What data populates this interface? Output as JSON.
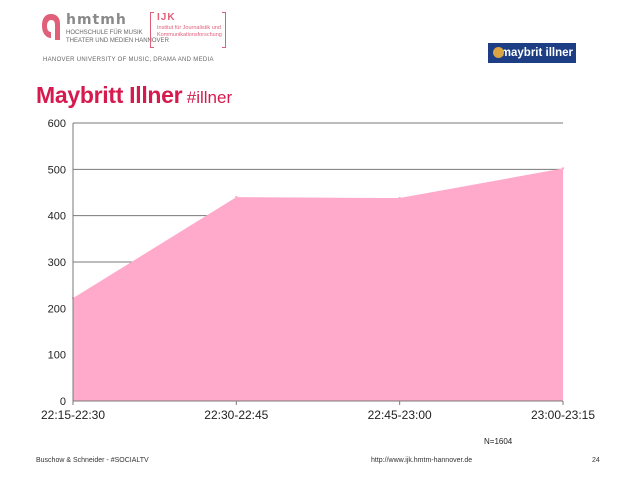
{
  "header": {
    "logo_name": "hmtmh",
    "logo_line1": "HOCHSCHULE FÜR MUSIK",
    "logo_line2": "THEATER UND MEDIEN HANNOVER",
    "ijk_title": "IJK",
    "ijk_line1": "Institut für Journalistik und",
    "ijk_line2": "Kommunikationsforschung",
    "university": "HANOVER UNIVERSITY OF MUSIC, DRAMA AND MEDIA",
    "show_logo": "maybrit illner",
    "accent_color": "#d61a4e"
  },
  "slide": {
    "title": "Maybritt Illner",
    "hashtag": "#illner",
    "sample_note": "N=1604"
  },
  "footer": {
    "authors": "Buschow & Schneider - #SOCIALTV",
    "url": "http://www.ijk.hmtm-hannover.de",
    "page": "24"
  },
  "chart_data": {
    "type": "area",
    "categories": [
      "22:15-22:30",
      "22:30-22:45",
      "22:45-23:00",
      "23:00-23:15"
    ],
    "series": [
      {
        "values": [
          222,
          440,
          438,
          502
        ],
        "color": "#ffaacb"
      }
    ],
    "ylim": [
      0,
      600
    ],
    "yticks": [
      0,
      100,
      200,
      300,
      400,
      500,
      600
    ],
    "grid": true,
    "legend": "none"
  }
}
